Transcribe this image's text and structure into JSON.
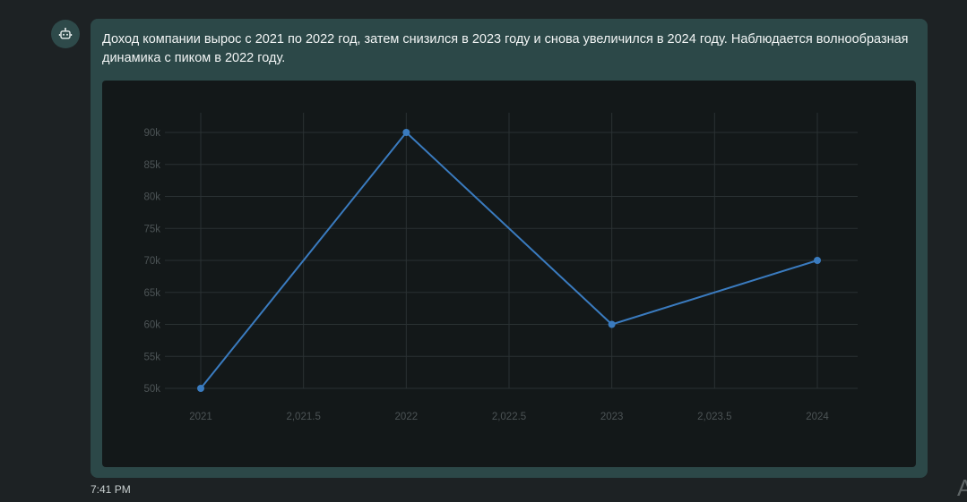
{
  "message": {
    "text": "Доход компании вырос с 2021 по 2022 год, затем снизился в 2023 году и снова увеличился в 2024 году. Наблюдается волнообразная динамика с пиком в 2022 году.",
    "timestamp": "7:41 PM"
  },
  "avatar": {
    "icon": "robot-icon"
  },
  "edge_text": "A",
  "colors": {
    "line": "#3a7bbf",
    "grid": "#2a3133",
    "bubble": "#2c4848",
    "panel": "#131819"
  },
  "chart_data": {
    "type": "line",
    "x": [
      2021,
      2022,
      2023,
      2024
    ],
    "series": [
      {
        "values": [
          50000,
          90000,
          60000,
          70000
        ]
      }
    ],
    "x_ticks": [
      2021,
      2021.5,
      2022,
      2022.5,
      2023,
      2023.5,
      2024
    ],
    "x_tick_labels": [
      "2021",
      "2,021.5",
      "2022",
      "2,022.5",
      "2023",
      "2,023.5",
      "2024"
    ],
    "y_ticks": [
      50000,
      55000,
      60000,
      65000,
      70000,
      75000,
      80000,
      85000,
      90000
    ],
    "y_tick_labels": [
      "50k",
      "55k",
      "60k",
      "65k",
      "70k",
      "75k",
      "80k",
      "85k",
      "90k"
    ],
    "xlim": [
      2021,
      2024
    ],
    "ylim": [
      50000,
      90000
    ],
    "title": "",
    "xlabel": "",
    "ylabel": "",
    "grid": true,
    "legend": "none"
  }
}
